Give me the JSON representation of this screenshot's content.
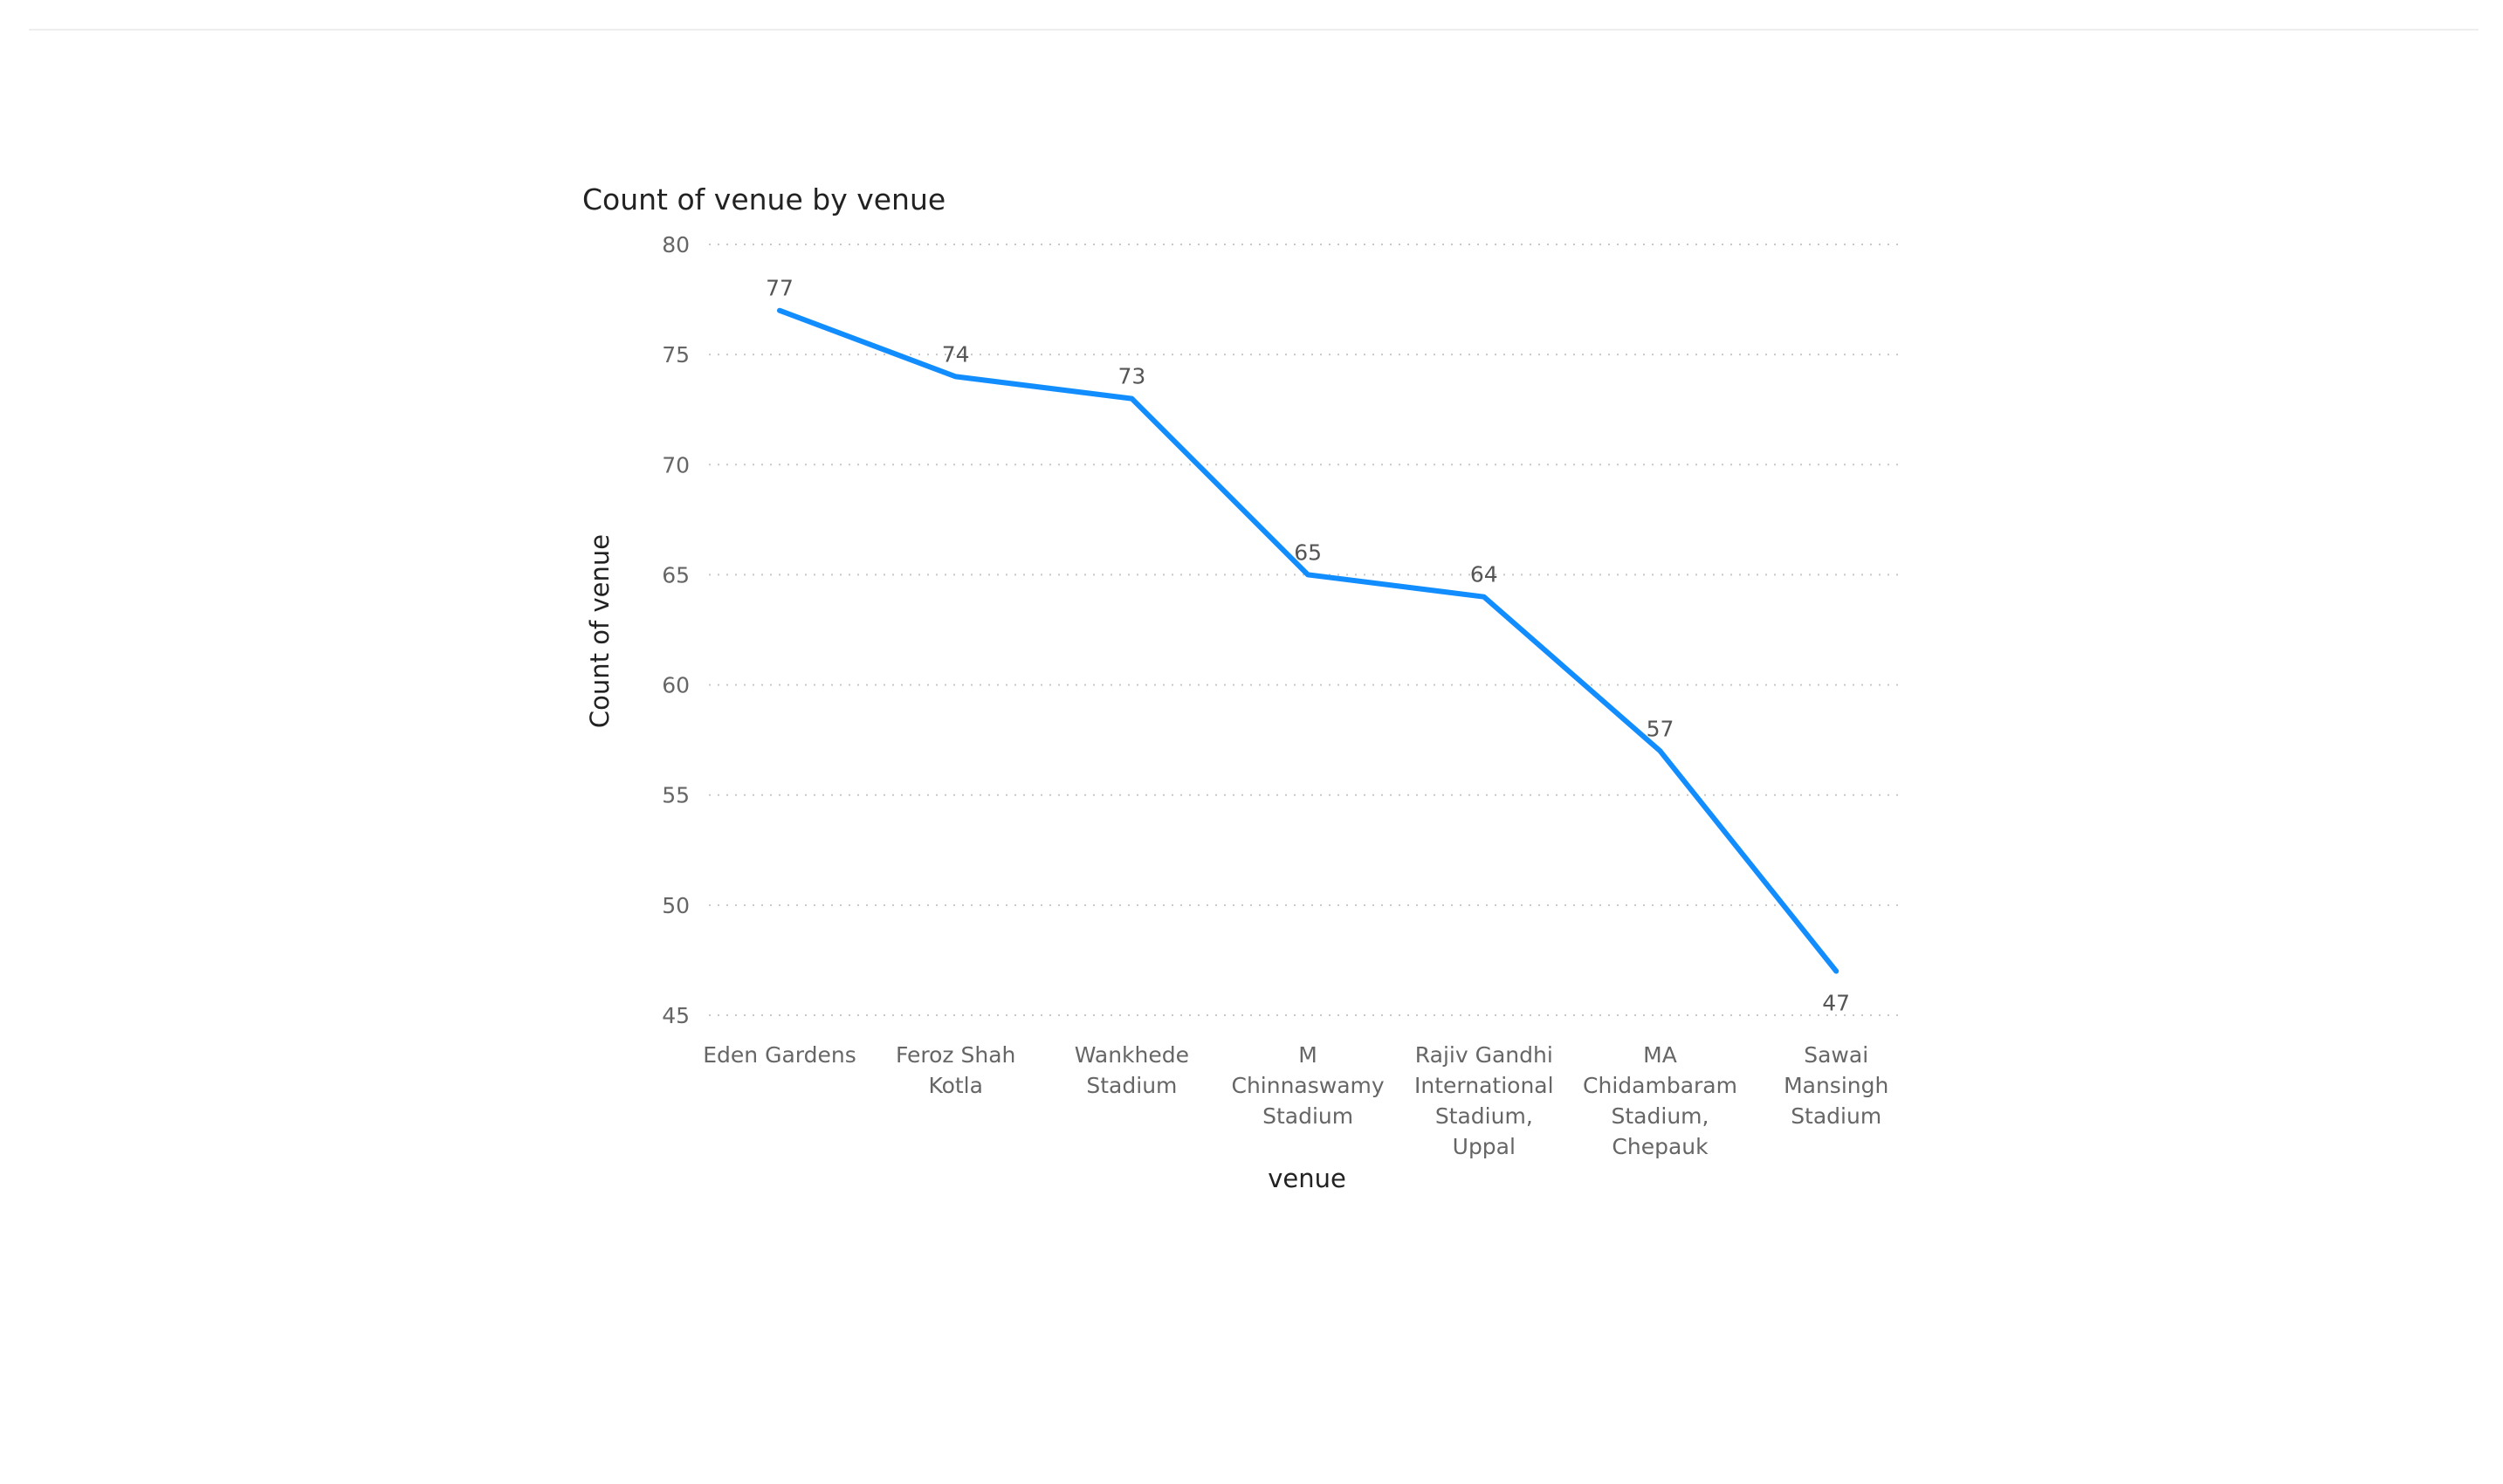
{
  "chart_data": {
    "type": "line",
    "title": "Count of venue by venue",
    "xlabel": "venue",
    "ylabel": "Count of venue",
    "categories": [
      [
        "Eden Gardens"
      ],
      [
        "Feroz Shah",
        "Kotla"
      ],
      [
        "Wankhede",
        "Stadium"
      ],
      [
        "M",
        "Chinnaswamy",
        "Stadium"
      ],
      [
        "Rajiv Gandhi",
        "International",
        "Stadium,",
        "Uppal"
      ],
      [
        "MA",
        "Chidambaram",
        "Stadium,",
        "Chepauk"
      ],
      [
        "Sawai",
        "Mansingh",
        "Stadium"
      ]
    ],
    "values": [
      77,
      74,
      73,
      65,
      64,
      57,
      47
    ],
    "ylim": [
      45,
      80
    ],
    "yticks": [
      80,
      75,
      70,
      65,
      60,
      55,
      50,
      45
    ],
    "grid": true,
    "data_labels": true,
    "line_color": "#118DFF"
  }
}
